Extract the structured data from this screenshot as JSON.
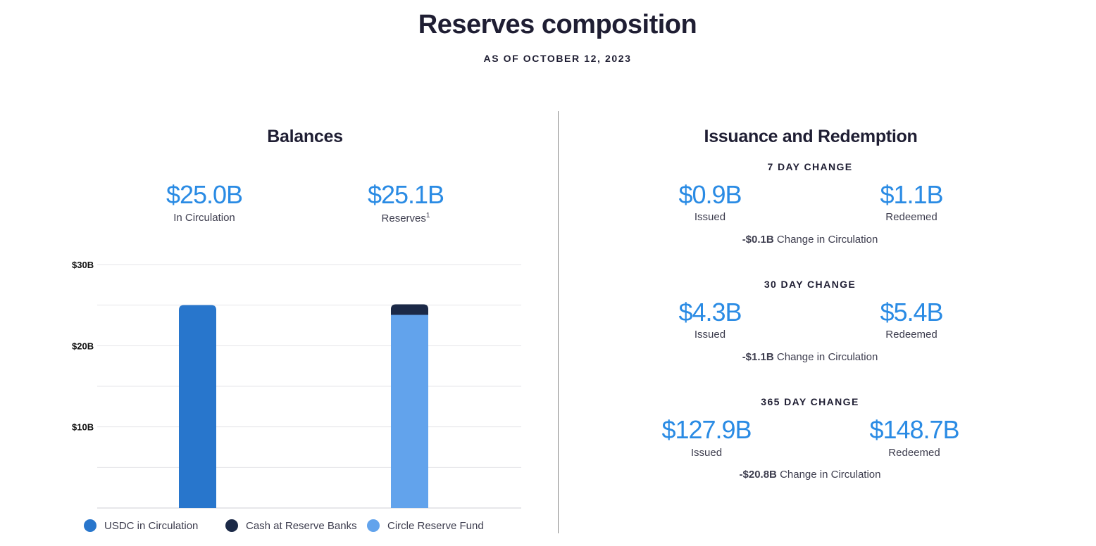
{
  "header": {
    "title": "Reserves composition",
    "subtitle": "AS OF OCTOBER 12, 2023"
  },
  "balances": {
    "title": "Balances",
    "circulation": {
      "value": "$25.0B",
      "label": "In Circulation"
    },
    "reserves": {
      "value": "$25.1B",
      "label": "Reserves",
      "footnote": "1"
    }
  },
  "legend": [
    {
      "label": "USDC in Circulation",
      "color": "#2876cc"
    },
    {
      "label": "Cash at Reserve Banks",
      "color": "#1b2947"
    },
    {
      "label": "Circle Reserve Fund",
      "color": "#62a3ec"
    }
  ],
  "issuance": {
    "title": "Issuance and Redemption",
    "periods": [
      {
        "heading": "7 DAY CHANGE",
        "issued": "$0.9B",
        "issued_label": "Issued",
        "redeemed": "$1.1B",
        "redeemed_label": "Redeemed",
        "net": "-$0.1B",
        "net_label": "Change in Circulation"
      },
      {
        "heading": "30 DAY CHANGE",
        "issued": "$4.3B",
        "issued_label": "Issued",
        "redeemed": "$5.4B",
        "redeemed_label": "Redeemed",
        "net": "-$1.1B",
        "net_label": "Change in Circulation"
      },
      {
        "heading": "365 DAY CHANGE",
        "issued": "$127.9B",
        "issued_label": "Issued",
        "redeemed": "$148.7B",
        "redeemed_label": "Redeemed",
        "net": "-$20.8B",
        "net_label": "Change in Circulation"
      }
    ]
  },
  "chart_data": {
    "type": "bar",
    "stacked": true,
    "categories": [
      "USDC in Circulation",
      "Reserves"
    ],
    "ylim": [
      0,
      30
    ],
    "yticks": [
      {
        "value": 10,
        "label": "$10B"
      },
      {
        "value": 20,
        "label": "$20B"
      },
      {
        "value": 30,
        "label": "$30B"
      }
    ],
    "gridlines": [
      0,
      5,
      10,
      15,
      20,
      25,
      30
    ],
    "series": [
      {
        "name": "USDC in Circulation",
        "color": "#2876cc",
        "values": [
          25.0,
          0
        ]
      },
      {
        "name": "Circle Reserve Fund",
        "color": "#62a3ec",
        "values": [
          0,
          23.8
        ]
      },
      {
        "name": "Cash at Reserve Banks",
        "color": "#1b2947",
        "values": [
          0,
          1.3
        ]
      }
    ]
  }
}
